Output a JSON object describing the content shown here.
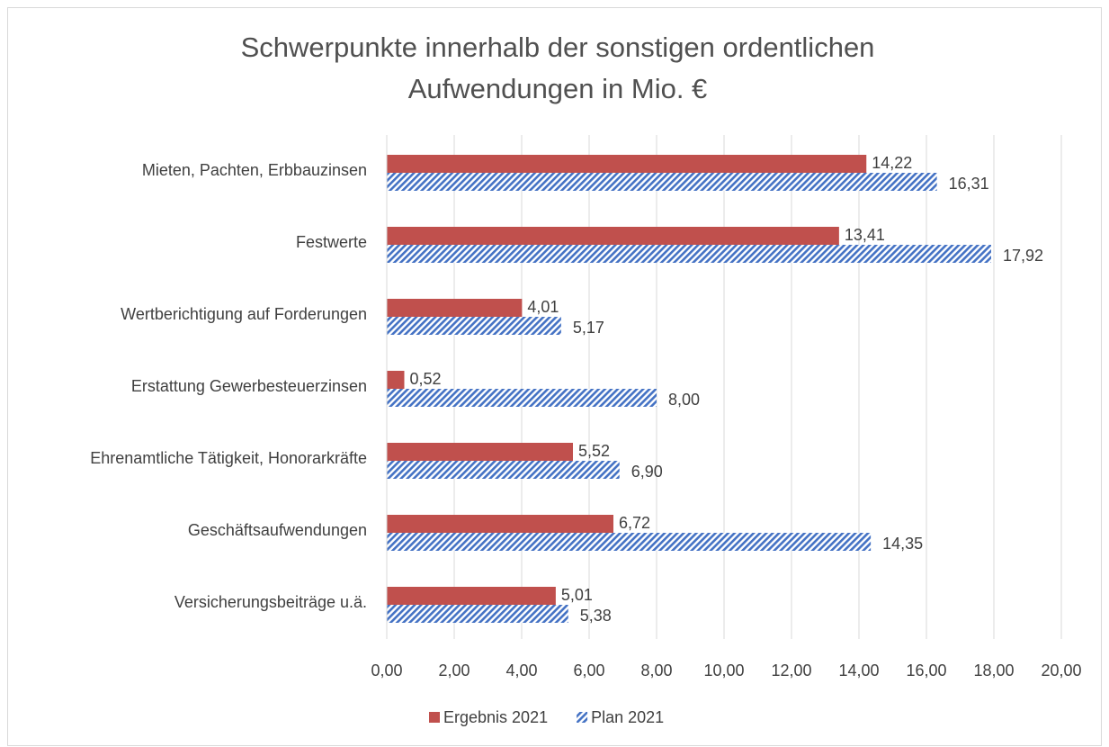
{
  "chart_data": {
    "type": "hbar",
    "title": [
      "Schwerpunkte innerhalb der sonstigen ordentlichen",
      "Aufwendungen in Mio. €"
    ],
    "categories": [
      "Mieten, Pachten, Erbbauzinsen",
      "Festwerte",
      "Wertberichtigung auf Forderungen",
      "Erstattung Gewerbesteuerzinsen",
      "Ehrenamtliche Tätigkeit, Honorarkräfte",
      "Geschäftsaufwendungen",
      "Versicherungsbeiträge u.ä."
    ],
    "series": [
      {
        "name": "Ergebnis 2021",
        "color": "#c0504d",
        "hatch": false,
        "values": [
          14.22,
          13.41,
          4.01,
          0.52,
          5.52,
          6.72,
          5.01
        ],
        "value_labels": [
          "14,22",
          "13,41",
          "4,01",
          "0,52",
          "5,52",
          "6,72",
          "5,01"
        ]
      },
      {
        "name": "Plan 2021",
        "color": "#4472c4",
        "hatch": true,
        "values": [
          16.31,
          17.92,
          5.17,
          8.0,
          6.9,
          14.35,
          5.38
        ],
        "value_labels": [
          "16,31",
          "17,92",
          "5,17",
          "8,00",
          "6,90",
          "14,35",
          "5,38"
        ]
      }
    ],
    "xlim": [
      0,
      20
    ],
    "xticks": [
      {
        "value": 0,
        "label": "0,00"
      },
      {
        "value": 2,
        "label": "2,00"
      },
      {
        "value": 4,
        "label": "4,00"
      },
      {
        "value": 6,
        "label": "6,00"
      },
      {
        "value": 8,
        "label": "8,00"
      },
      {
        "value": 10,
        "label": "10,00"
      },
      {
        "value": 12,
        "label": "12,00"
      },
      {
        "value": 14,
        "label": "14,00"
      },
      {
        "value": 16,
        "label": "16,00"
      },
      {
        "value": 18,
        "label": "18,00"
      },
      {
        "value": 20,
        "label": "20,00"
      }
    ],
    "grid": true,
    "legend": "bottom"
  }
}
